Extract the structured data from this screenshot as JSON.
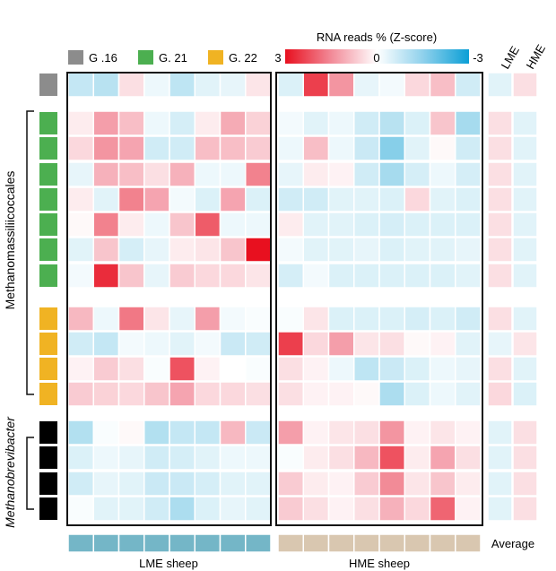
{
  "chart_data": {
    "type": "heatmap",
    "colorbar": {
      "title": "RNA reads % (Z-score)",
      "max_label": "3",
      "mid_label": "0",
      "min_label": "-3",
      "range": [
        -3,
        3
      ]
    },
    "legend": [
      {
        "label": "G .16",
        "color": "#8c8c8c"
      },
      {
        "label": "G. 21",
        "color": "#4caf50"
      },
      {
        "label": "G. 22",
        "color": "#f0b323"
      }
    ],
    "group_labels": {
      "methanomassiliicoccales": "Methanomassiliicoccales",
      "methanobrevibacter": "Methanobrevibacter"
    },
    "column_groups": {
      "lme": "LME sheep",
      "hme": "HME sheep",
      "lme_color": "#74b6c7",
      "hme_color": "#d9c7b0"
    },
    "average_columns": {
      "lme": "LME",
      "hme": "HME",
      "label": "Average"
    },
    "rows": [
      {
        "group": "G .16",
        "lme": [
          -1.0,
          -1.2,
          0.5,
          -0.3,
          -1.1,
          -0.5,
          -0.4,
          0.4
        ],
        "hme": [
          -0.6,
          2.5,
          1.6,
          -0.4,
          -0.2,
          0.6,
          1.0,
          -0.8
        ],
        "avg": [
          -0.5,
          0.5
        ]
      },
      {
        "group": "G. 21",
        "lme": [
          0.3,
          1.5,
          1.0,
          -0.3,
          -0.7,
          0.3,
          1.3,
          0.7
        ],
        "hme": [
          -0.2,
          -0.5,
          -0.3,
          -0.8,
          -1.2,
          -0.6,
          0.9,
          -1.5
        ],
        "avg": [
          0.5,
          -0.5
        ]
      },
      {
        "group": "G. 21",
        "lme": [
          0.6,
          1.6,
          1.4,
          -0.8,
          -0.8,
          1.0,
          1.0,
          0.8
        ],
        "hme": [
          -0.3,
          1.0,
          -0.3,
          -0.9,
          -1.8,
          -0.5,
          0.1,
          -0.8
        ],
        "avg": [
          0.5,
          -0.5
        ]
      },
      {
        "group": "G. 21",
        "lme": [
          -0.4,
          1.2,
          1.0,
          0.5,
          1.2,
          -0.3,
          -0.3,
          1.8
        ],
        "hme": [
          -0.4,
          0.3,
          0.2,
          -0.8,
          -1.5,
          -0.7,
          -0.3,
          -0.7
        ],
        "avg": [
          0.5,
          -0.5
        ]
      },
      {
        "group": "G. 21",
        "lme": [
          0.3,
          -0.5,
          1.8,
          1.4,
          -0.2,
          -0.6,
          1.4,
          -0.6
        ],
        "hme": [
          -0.8,
          -0.8,
          -0.5,
          -0.5,
          -0.6,
          0.6,
          -0.5,
          -0.6
        ],
        "avg": [
          0.5,
          -0.5
        ]
      },
      {
        "group": "G. 21",
        "lme": [
          0.1,
          1.8,
          0.3,
          -0.3,
          0.9,
          2.2,
          -0.3,
          -0.3
        ],
        "hme": [
          0.3,
          -0.5,
          -0.5,
          -0.6,
          -0.7,
          -0.6,
          -0.6,
          -0.6
        ],
        "avg": [
          0.5,
          -0.5
        ]
      },
      {
        "group": "G. 21",
        "lme": [
          -0.5,
          0.9,
          -0.7,
          -0.4,
          0.3,
          0.4,
          0.9,
          3.0
        ],
        "hme": [
          -0.2,
          -0.5,
          -0.5,
          -0.4,
          -0.6,
          -0.5,
          -0.5,
          -0.4
        ],
        "avg": [
          0.5,
          -0.5
        ]
      },
      {
        "group": "G. 21",
        "lme": [
          -0.2,
          2.7,
          0.9,
          -0.4,
          0.8,
          0.6,
          0.6,
          0.4
        ],
        "hme": [
          -0.7,
          -0.2,
          -0.6,
          -0.6,
          -0.6,
          -0.6,
          -0.6,
          -0.5
        ],
        "avg": [
          0.5,
          -0.5
        ]
      },
      {
        "group": "G. 22",
        "lme": [
          1.1,
          -0.3,
          1.9,
          0.4,
          -0.4,
          1.5,
          -0.2,
          -0.1
        ],
        "hme": [
          -0.1,
          0.4,
          -0.6,
          -0.6,
          -0.6,
          -0.7,
          -0.6,
          -0.8
        ],
        "avg": [
          0.5,
          -0.5
        ]
      },
      {
        "group": "G. 22",
        "lme": [
          -0.8,
          -1.0,
          -0.2,
          -0.3,
          -0.5,
          -0.2,
          -0.9,
          -0.8
        ],
        "hme": [
          2.5,
          0.6,
          1.5,
          0.4,
          0.5,
          0.1,
          0.2,
          -0.5
        ],
        "avg": [
          -0.4,
          0.4
        ]
      },
      {
        "group": "G. 22",
        "lme": [
          0.2,
          0.8,
          0.5,
          -0.1,
          2.3,
          0.2,
          0.0,
          -0.1
        ],
        "hme": [
          0.5,
          0.2,
          -0.3,
          -1.1,
          -0.9,
          -0.6,
          -0.3,
          -0.4
        ],
        "avg": [
          0.5,
          -0.5
        ]
      },
      {
        "group": "G. 22",
        "lme": [
          0.8,
          0.7,
          0.6,
          0.9,
          1.4,
          0.6,
          0.6,
          0.5
        ],
        "hme": [
          0.5,
          0.2,
          0.2,
          0.1,
          -1.4,
          -0.6,
          -0.3,
          -0.5
        ],
        "avg": [
          0.6,
          -0.6
        ]
      },
      {
        "group": "Methanobrevibacter",
        "lme": [
          -1.3,
          -0.1,
          0.1,
          -1.3,
          -1.0,
          -1.0,
          1.1,
          -0.9
        ],
        "hme": [
          1.5,
          0.2,
          0.4,
          0.5,
          1.6,
          0.2,
          0.4,
          0.2
        ],
        "avg": [
          -0.5,
          0.5
        ]
      },
      {
        "group": "Methanobrevibacter",
        "lme": [
          -0.6,
          -0.3,
          -0.4,
          -0.8,
          -0.7,
          -0.5,
          -0.3,
          -0.3
        ],
        "hme": [
          -0.1,
          0.3,
          0.5,
          1.1,
          2.3,
          0.3,
          1.4,
          0.5
        ],
        "avg": [
          -0.5,
          0.5
        ]
      },
      {
        "group": "Methanobrevibacter",
        "lme": [
          -0.8,
          -0.4,
          -0.5,
          -0.9,
          -0.9,
          -0.7,
          -0.5,
          -0.5
        ],
        "hme": [
          0.8,
          0.3,
          0.2,
          0.8,
          1.7,
          0.4,
          0.9,
          0.3
        ],
        "avg": [
          -0.5,
          0.5
        ]
      },
      {
        "group": "Methanobrevibacter",
        "lme": [
          -0.1,
          -0.5,
          -0.5,
          -0.8,
          -1.4,
          -0.6,
          -0.4,
          -0.5
        ],
        "hme": [
          0.8,
          0.5,
          0.2,
          0.5,
          1.2,
          0.6,
          2.1,
          0.2
        ],
        "avg": [
          -0.5,
          0.5
        ]
      }
    ]
  }
}
